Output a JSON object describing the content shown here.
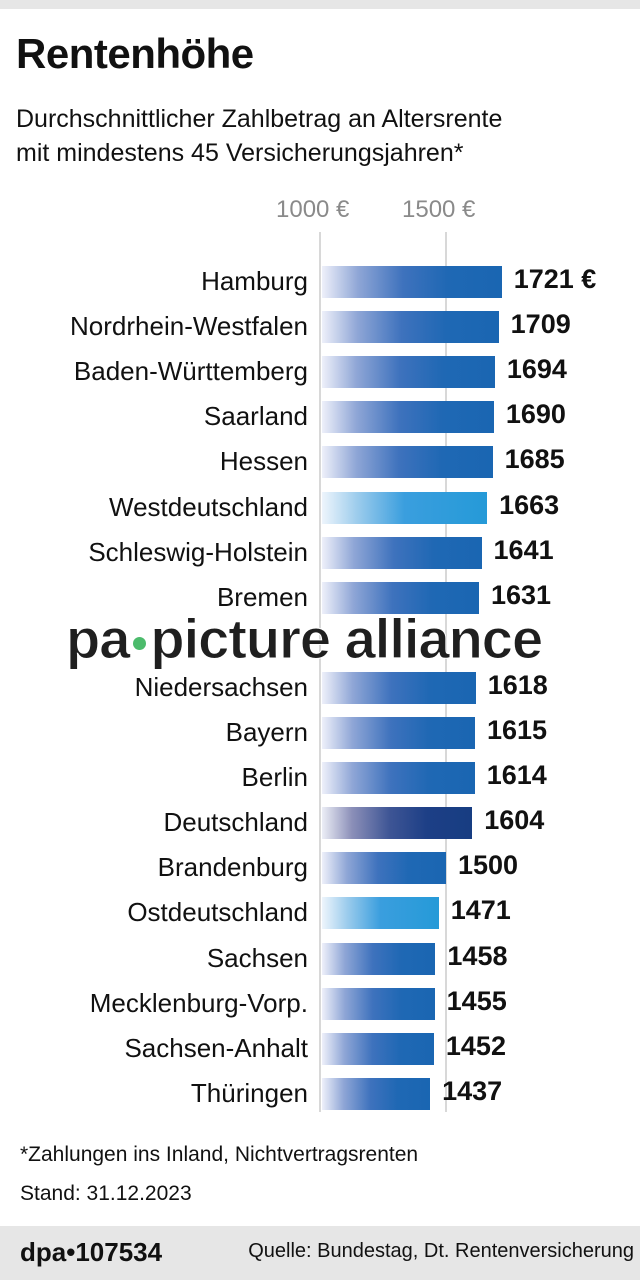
{
  "header": {
    "title": "Rentenhöhe",
    "subtitle_line1": "Durchschnittlicher Zahlbetrag an Altersrente",
    "subtitle_line2": "mit mindestens 45 Versicherungsjahren*"
  },
  "axis": {
    "ticks": [
      {
        "label": "1000 €",
        "value": 1000
      },
      {
        "label": "1500 €",
        "value": 1500
      }
    ]
  },
  "rows": [
    {
      "label": "Hamburg",
      "value": 1721,
      "display": "1721 €",
      "kind": "reg"
    },
    {
      "label": "Nordrhein-Westfalen",
      "value": 1709,
      "display": "1709",
      "kind": "reg"
    },
    {
      "label": "Baden-Württemberg",
      "value": 1694,
      "display": "1694",
      "kind": "reg"
    },
    {
      "label": "Saarland",
      "value": 1690,
      "display": "1690",
      "kind": "reg"
    },
    {
      "label": "Hessen",
      "value": 1685,
      "display": "1685",
      "kind": "reg"
    },
    {
      "label": "Westdeutschland",
      "value": 1663,
      "display": "1663",
      "kind": "agg"
    },
    {
      "label": "Schleswig-Holstein",
      "value": 1641,
      "display": "1641",
      "kind": "reg"
    },
    {
      "label": "Bremen",
      "value": 1631,
      "display": "1631",
      "kind": "reg"
    },
    {
      "label": "",
      "value": null,
      "display": "",
      "kind": "hidden"
    },
    {
      "label": "Niedersachsen",
      "value": 1618,
      "display": "1618",
      "kind": "reg"
    },
    {
      "label": "Bayern",
      "value": 1615,
      "display": "1615",
      "kind": "reg"
    },
    {
      "label": "Berlin",
      "value": 1614,
      "display": "1614",
      "kind": "reg"
    },
    {
      "label": "Deutschland",
      "value": 1604,
      "display": "1604",
      "kind": "nat"
    },
    {
      "label": "Brandenburg",
      "value": 1500,
      "display": "1500",
      "kind": "reg"
    },
    {
      "label": "Ostdeutschland",
      "value": 1471,
      "display": "1471",
      "kind": "agg"
    },
    {
      "label": "Sachsen",
      "value": 1458,
      "display": "1458",
      "kind": "reg"
    },
    {
      "label": "Mecklenburg-Vorp.",
      "value": 1455,
      "display": "1455",
      "kind": "reg"
    },
    {
      "label": "Sachsen-Anhalt",
      "value": 1452,
      "display": "1452",
      "kind": "reg"
    },
    {
      "label": "Thüringen",
      "value": 1437,
      "display": "1437",
      "kind": "reg"
    }
  ],
  "watermark": {
    "left": "pa",
    "right": "picture alliance"
  },
  "footnotes": {
    "note": "*Zahlungen ins Inland, Nichtvertragsrenten",
    "date": "Stand: 31.12.2023"
  },
  "footer": {
    "id": "dpa•107534",
    "source": "Quelle: Bundestag, Dt. Rentenversicherung"
  },
  "colors": {
    "bar_region": "#1a66b2",
    "bar_aggregate": "#259ad8",
    "bar_national": "#173d82",
    "axis_line": "#d8d8d8",
    "footer_bg": "#e6e6e6"
  },
  "chart_data": {
    "type": "bar",
    "orientation": "horizontal",
    "title": "Rentenhöhe",
    "subtitle": "Durchschnittlicher Zahlbetrag an Altersrente mit mindestens 45 Versicherungsjahren*",
    "xlabel": "",
    "ylabel": "",
    "unit": "€",
    "xlim": [
      870,
      1721
    ],
    "x_ticks": [
      1000,
      1500
    ],
    "grid": true,
    "categories": [
      "Hamburg",
      "Nordrhein-Westfalen",
      "Baden-Württemberg",
      "Saarland",
      "Hessen",
      "Westdeutschland",
      "Schleswig-Holstein",
      "Bremen",
      "Niedersachsen",
      "Bayern",
      "Berlin",
      "Deutschland",
      "Brandenburg",
      "Ostdeutschland",
      "Sachsen",
      "Mecklenburg-Vorp.",
      "Sachsen-Anhalt",
      "Thüringen"
    ],
    "values": [
      1721,
      1709,
      1694,
      1690,
      1685,
      1663,
      1641,
      1631,
      1618,
      1615,
      1614,
      1604,
      1500,
      1471,
      1458,
      1455,
      1452,
      1437
    ],
    "annotations": [
      "One row between Bremen and Niedersachsen is obscured by watermark"
    ],
    "footnote": "*Zahlungen ins Inland, Nichtvertragsrenten",
    "date": "Stand: 31.12.2023",
    "source": "Quelle: Bundestag, Dt. Rentenversicherung"
  }
}
